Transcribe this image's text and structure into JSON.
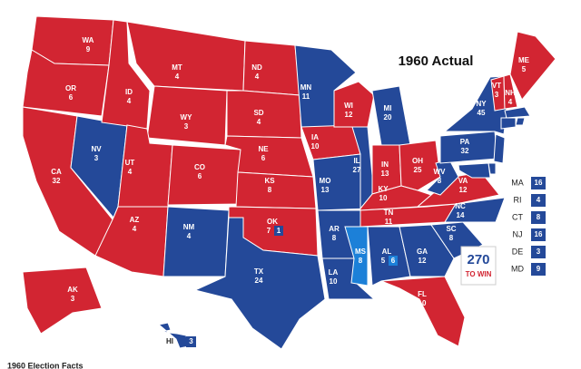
{
  "title": "1960 Actual",
  "colors": {
    "R": "#d22532",
    "D": "#244999",
    "U": "#1c80d8"
  },
  "states": [
    {
      "abbr": "WA",
      "votes": 9,
      "party": "R"
    },
    {
      "abbr": "OR",
      "votes": 6,
      "party": "R"
    },
    {
      "abbr": "CA",
      "votes": 32,
      "party": "R"
    },
    {
      "abbr": "NV",
      "votes": 3,
      "party": "D"
    },
    {
      "abbr": "ID",
      "votes": 4,
      "party": "R"
    },
    {
      "abbr": "MT",
      "votes": 4,
      "party": "R"
    },
    {
      "abbr": "WY",
      "votes": 3,
      "party": "R"
    },
    {
      "abbr": "UT",
      "votes": 4,
      "party": "R"
    },
    {
      "abbr": "CO",
      "votes": 6,
      "party": "R"
    },
    {
      "abbr": "AZ",
      "votes": 4,
      "party": "R"
    },
    {
      "abbr": "NM",
      "votes": 4,
      "party": "D"
    },
    {
      "abbr": "ND",
      "votes": 4,
      "party": "R"
    },
    {
      "abbr": "SD",
      "votes": 4,
      "party": "R"
    },
    {
      "abbr": "NE",
      "votes": 6,
      "party": "R"
    },
    {
      "abbr": "KS",
      "votes": 8,
      "party": "R"
    },
    {
      "abbr": "OK",
      "votes": 7,
      "party": "R",
      "split_votes": 1,
      "split_party": "D"
    },
    {
      "abbr": "TX",
      "votes": 24,
      "party": "D"
    },
    {
      "abbr": "MN",
      "votes": 11,
      "party": "D"
    },
    {
      "abbr": "IA",
      "votes": 10,
      "party": "R"
    },
    {
      "abbr": "MO",
      "votes": 13,
      "party": "D"
    },
    {
      "abbr": "AR",
      "votes": 8,
      "party": "D"
    },
    {
      "abbr": "LA",
      "votes": 10,
      "party": "D"
    },
    {
      "abbr": "WI",
      "votes": 12,
      "party": "R"
    },
    {
      "abbr": "IL",
      "votes": 27,
      "party": "D"
    },
    {
      "abbr": "MI",
      "votes": 20,
      "party": "D"
    },
    {
      "abbr": "IN",
      "votes": 13,
      "party": "R"
    },
    {
      "abbr": "OH",
      "votes": 25,
      "party": "R"
    },
    {
      "abbr": "KY",
      "votes": 10,
      "party": "R"
    },
    {
      "abbr": "TN",
      "votes": 11,
      "party": "R"
    },
    {
      "abbr": "MS",
      "votes": 8,
      "party": "U"
    },
    {
      "abbr": "AL",
      "votes": 5,
      "party": "D",
      "split_votes": 6,
      "split_party": "U"
    },
    {
      "abbr": "GA",
      "votes": 12,
      "party": "D"
    },
    {
      "abbr": "FL",
      "votes": 10,
      "party": "R"
    },
    {
      "abbr": "SC",
      "votes": 8,
      "party": "D"
    },
    {
      "abbr": "NC",
      "votes": 14,
      "party": "D"
    },
    {
      "abbr": "VA",
      "votes": 12,
      "party": "R"
    },
    {
      "abbr": "WV",
      "votes": 8,
      "party": "D"
    },
    {
      "abbr": "PA",
      "votes": 32,
      "party": "D"
    },
    {
      "abbr": "NY",
      "votes": 45,
      "party": "D"
    },
    {
      "abbr": "VT",
      "votes": 3,
      "party": "R"
    },
    {
      "abbr": "NH",
      "votes": 4,
      "party": "R"
    },
    {
      "abbr": "ME",
      "votes": 5,
      "party": "R"
    },
    {
      "abbr": "AK",
      "votes": 3,
      "party": "R"
    },
    {
      "abbr": "HI",
      "votes": 3,
      "party": "D"
    }
  ],
  "small_states": [
    {
      "abbr": "MA",
      "votes": 16,
      "party": "D"
    },
    {
      "abbr": "RI",
      "votes": 4,
      "party": "D"
    },
    {
      "abbr": "CT",
      "votes": 8,
      "party": "D"
    },
    {
      "abbr": "NJ",
      "votes": 16,
      "party": "D"
    },
    {
      "abbr": "DE",
      "votes": 3,
      "party": "D"
    },
    {
      "abbr": "MD",
      "votes": 9,
      "party": "D"
    }
  ],
  "logo": {
    "number": "270",
    "text": "TO WIN"
  },
  "footer": "1960 Election Facts"
}
